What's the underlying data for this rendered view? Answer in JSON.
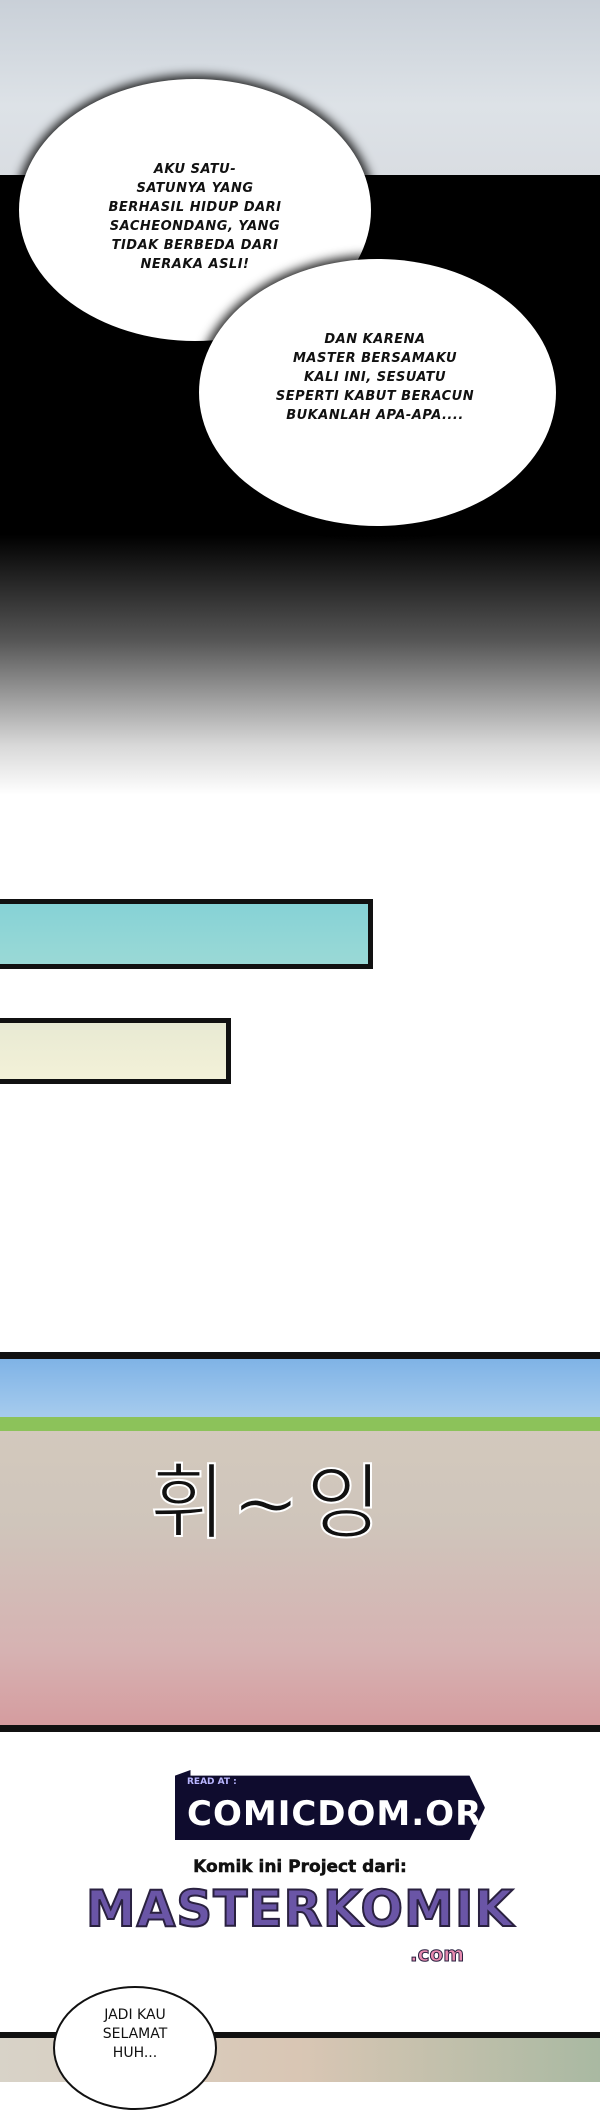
{
  "panel_1": {
    "bubble_1": [
      "AKU SATU-",
      "SATUNYA YANG",
      "BERHASIL HIDUP DARI",
      "SACHEONDANG, YANG",
      "TIDAK BERBEDA DARI",
      "NERAKA ASLI!"
    ],
    "bubble_2": [
      "DAN KARENA",
      "MASTER BERSAMAKU",
      "KALI INI, SESUATU",
      "SEPERTI KABUT BERACUN",
      "BUKANLAH APA-APA...."
    ]
  },
  "panel_rock": {
    "sfx": "휘~잉"
  },
  "credits": {
    "read_at": "READ AT :",
    "site": "COMICDOM.ORG",
    "project_label": "Komik ini Project dari:",
    "masterkomik": "MASTERKOMIK",
    "masterkomik_suffix": ".com"
  },
  "panel_last": {
    "bubble": [
      "JADI KAU",
      "SELAMAT",
      "HUH..."
    ]
  },
  "colors": {
    "bar_cyan": "#8fd4d6",
    "bar_cream": "#eeeed6",
    "comicdom_bg": "#0f0c2e",
    "masterkomik": "#6a55a6"
  }
}
